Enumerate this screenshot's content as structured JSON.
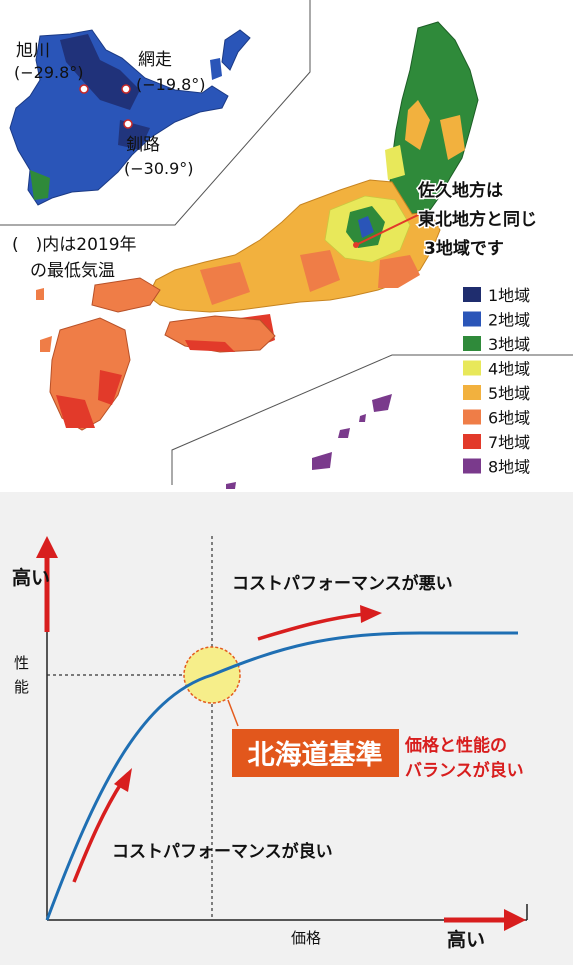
{
  "map": {
    "cities": [
      {
        "name": "旭川",
        "temp": "(−29.8°)"
      },
      {
        "name": "網走",
        "temp": "(−19.8°)"
      },
      {
        "name": "釧路",
        "temp": "(−30.9°)"
      }
    ],
    "note_line1": "(　)内は2019年",
    "note_line2": "の最低気温",
    "callout_line1": "佐久地方は",
    "callout_line2": "東北地方と同じ",
    "callout_line3": "3地域です",
    "legend": [
      {
        "label": "1地域",
        "color": "#1f2d6e"
      },
      {
        "label": "2地域",
        "color": "#2a55b8"
      },
      {
        "label": "3地域",
        "color": "#2f8a3a"
      },
      {
        "label": "4地域",
        "color": "#e8e85a"
      },
      {
        "label": "5地域",
        "color": "#f2b13e"
      },
      {
        "label": "6地域",
        "color": "#ef7d47"
      },
      {
        "label": "7地域",
        "color": "#e23a2a"
      },
      {
        "label": "8地域",
        "color": "#7a3a8c"
      }
    ]
  },
  "chart": {
    "y_high": "高い",
    "y_label": "性能",
    "x_label": "価格",
    "x_high": "高い",
    "bad_label": "コストパフォーマンスが悪い",
    "good_label": "コストパフォーマンスが良い",
    "standard_label": "北海道基準",
    "balance_line1": "価格と性能の",
    "balance_line2": "バランスが良い"
  }
}
